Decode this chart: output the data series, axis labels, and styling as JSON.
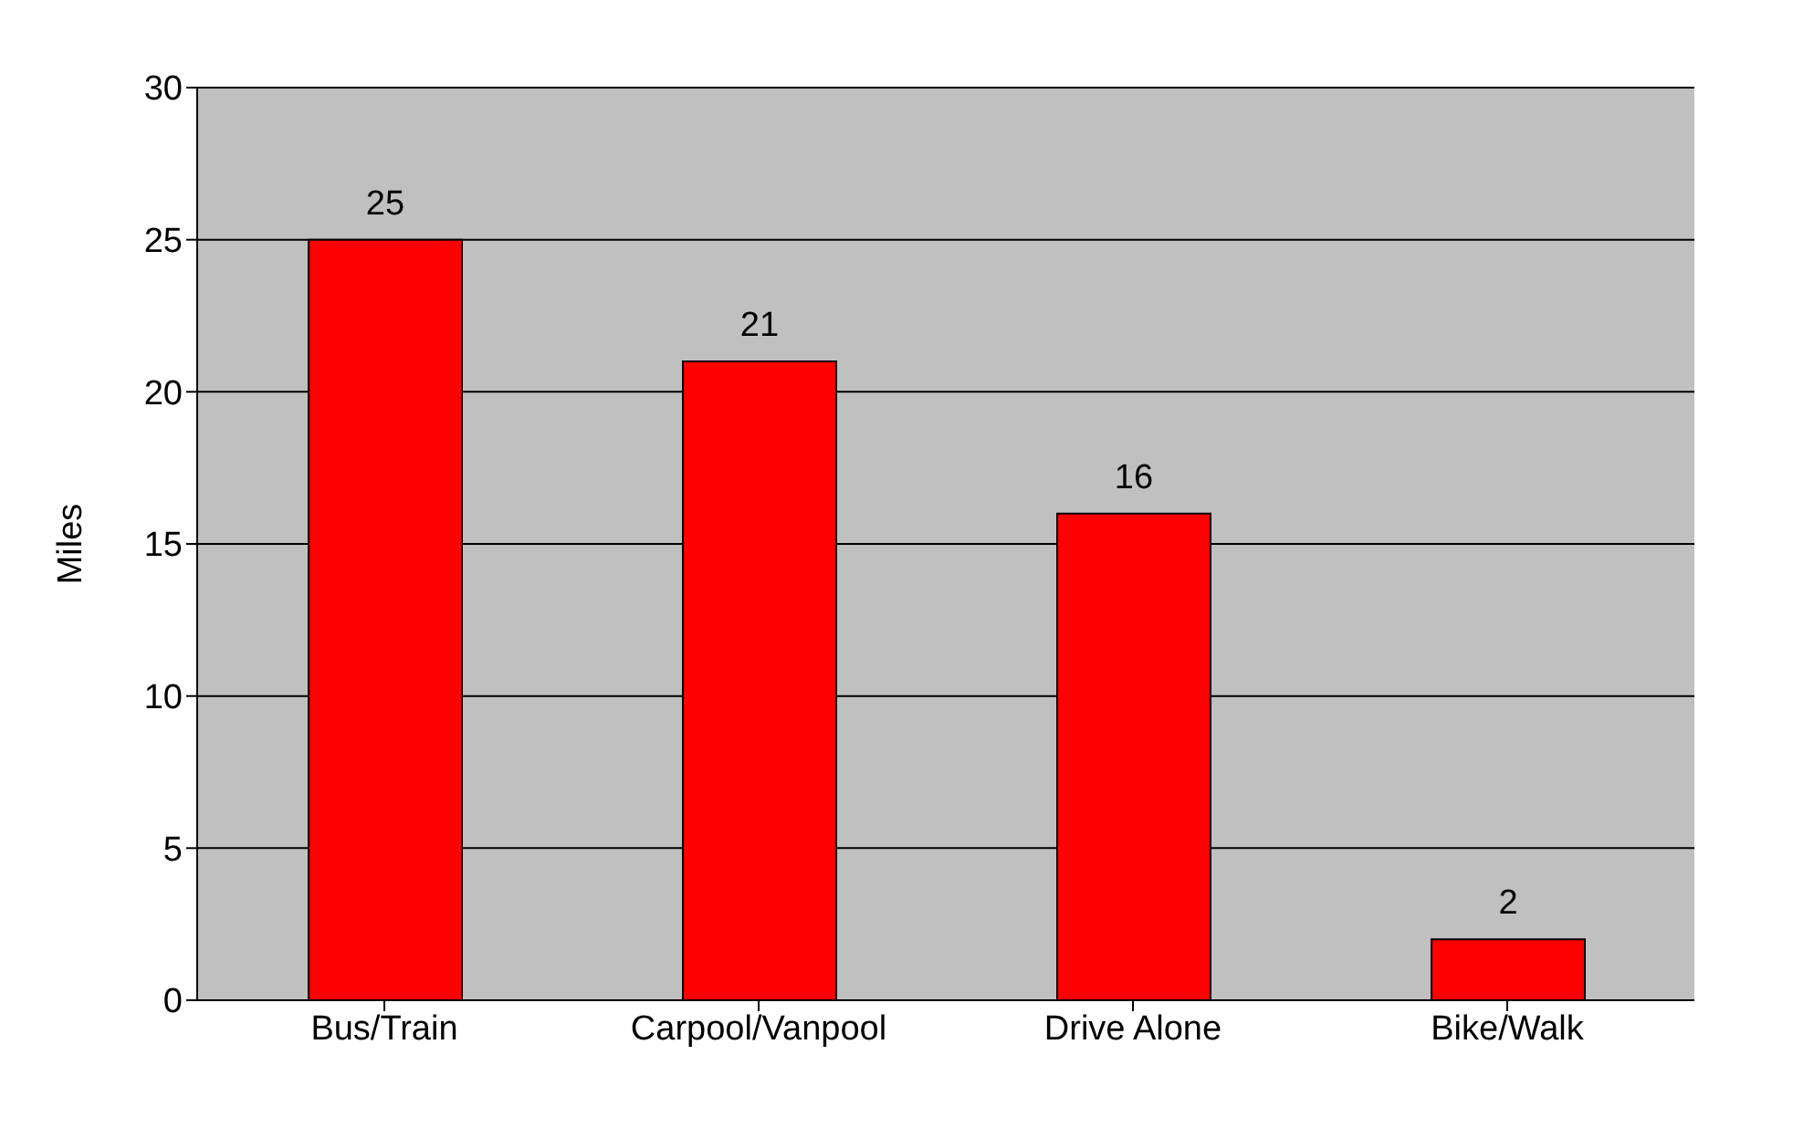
{
  "chart_data": {
    "type": "bar",
    "categories": [
      "Bus/Train",
      "Carpool/Vanpool",
      "Drive Alone",
      "Bike/Walk"
    ],
    "values": [
      25,
      21,
      16,
      2
    ],
    "color": "#ff0000",
    "ylabel": "Miles",
    "ylim": [
      0,
      30
    ],
    "yticks": [
      0,
      5,
      10,
      15,
      20,
      25,
      30
    ],
    "grid": "y",
    "data_labels": true
  }
}
